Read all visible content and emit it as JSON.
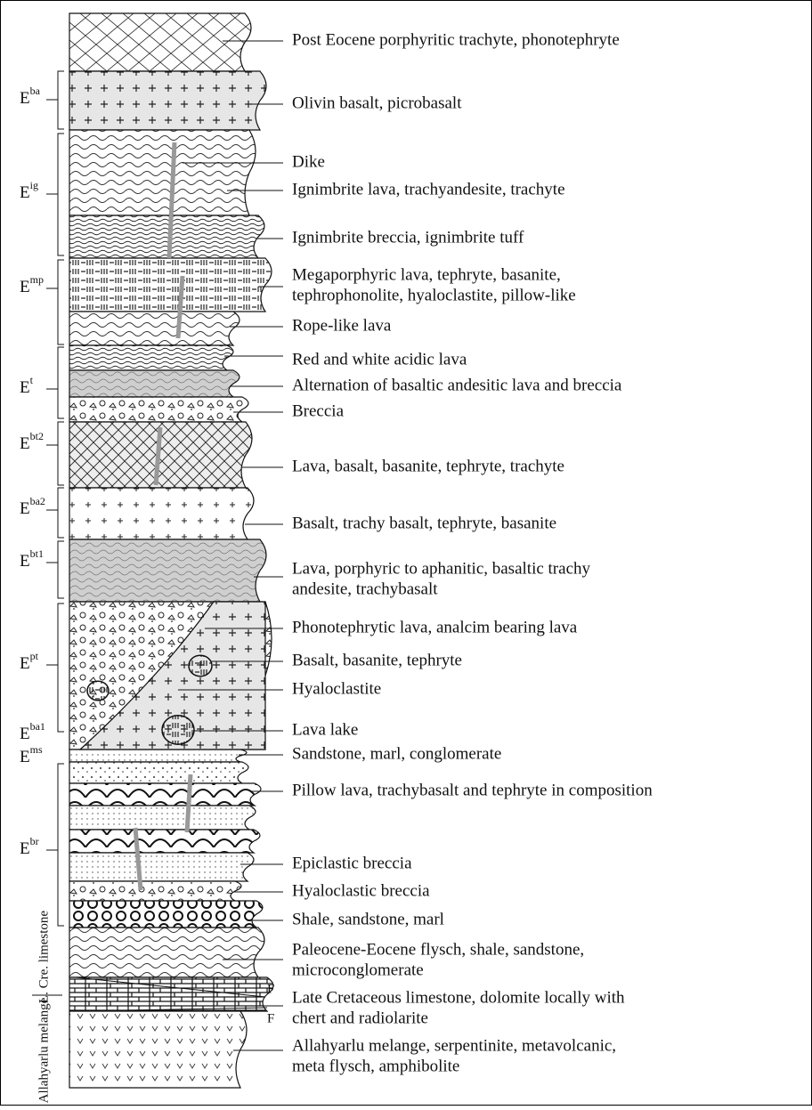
{
  "units": [
    {
      "label": "E",
      "sup": "ba"
    },
    {
      "label": "E",
      "sup": "ig"
    },
    {
      "label": "E",
      "sup": "mp"
    },
    {
      "label": "E",
      "sup": "t"
    },
    {
      "label": "E",
      "sup": "bt2"
    },
    {
      "label": "E",
      "sup": "ba2"
    },
    {
      "label": "E",
      "sup": "bt1"
    },
    {
      "label": "E",
      "sup": "pt"
    },
    {
      "label": "E",
      "sup": "ba1"
    },
    {
      "label": "E",
      "sup": "ms"
    },
    {
      "label": "E",
      "sup": "br"
    }
  ],
  "side_labels": [
    "L. Cre. limestone",
    "Allahyarlu melange"
  ],
  "faults": [
    "F",
    "F"
  ],
  "descriptions": [
    {
      "lines": [
        "Post Eocene porphyritic trachyte, phonotephryte"
      ]
    },
    {
      "lines": [
        "Olivin basalt, picrobasalt"
      ]
    },
    {
      "lines": [
        "Dike"
      ]
    },
    {
      "lines": [
        "Ignimbrite lava, trachyandesite, trachyte"
      ]
    },
    {
      "lines": [
        "Ignimbrite breccia, ignimbrite tuff"
      ]
    },
    {
      "lines": [
        "Megaporphyric lava, tephryte, basanite,",
        "tephrophonolite, hyaloclastite, pillow-like"
      ]
    },
    {
      "lines": [
        "Rope-like lava"
      ]
    },
    {
      "lines": [
        "Red and white acidic lava"
      ]
    },
    {
      "lines": [
        "Alternation of basaltic andesitic lava and breccia"
      ]
    },
    {
      "lines": [
        "Breccia"
      ]
    },
    {
      "lines": [
        "Lava, basalt, basanite, tephryte, trachyte"
      ]
    },
    {
      "lines": [
        "Basalt, trachy basalt, tephryte, basanite"
      ]
    },
    {
      "lines": [
        "Lava, porphyric to aphanitic, basaltic trachy",
        "andesite, trachybasalt"
      ]
    },
    {
      "lines": [
        "Phonotephrytic lava, analcim bearing lava"
      ]
    },
    {
      "lines": [
        "Basalt, basanite, tephryte"
      ]
    },
    {
      "lines": [
        "Hyaloclastite"
      ]
    },
    {
      "lines": [
        "Lava lake"
      ]
    },
    {
      "lines": [
        "Sandstone, marl, conglomerate"
      ]
    },
    {
      "lines": [
        "Pillow lava, trachybasalt and tephryte in composition"
      ]
    },
    {
      "lines": [
        "Epiclastic breccia"
      ]
    },
    {
      "lines": [
        "Hyaloclastic breccia"
      ]
    },
    {
      "lines": [
        "Shale, sandstone, marl"
      ]
    },
    {
      "lines": [
        "Paleocene-Eocene flysch, shale, sandstone,",
        "microconglomerate"
      ]
    },
    {
      "lines": [
        "Late Cretaceous limestone, dolomite locally with",
        "chert and radiolarite"
      ]
    },
    {
      "lines": [
        "Allahyarlu melange, serpentinite, metavolcanic,",
        "meta flysch, amphibolite"
      ]
    }
  ]
}
